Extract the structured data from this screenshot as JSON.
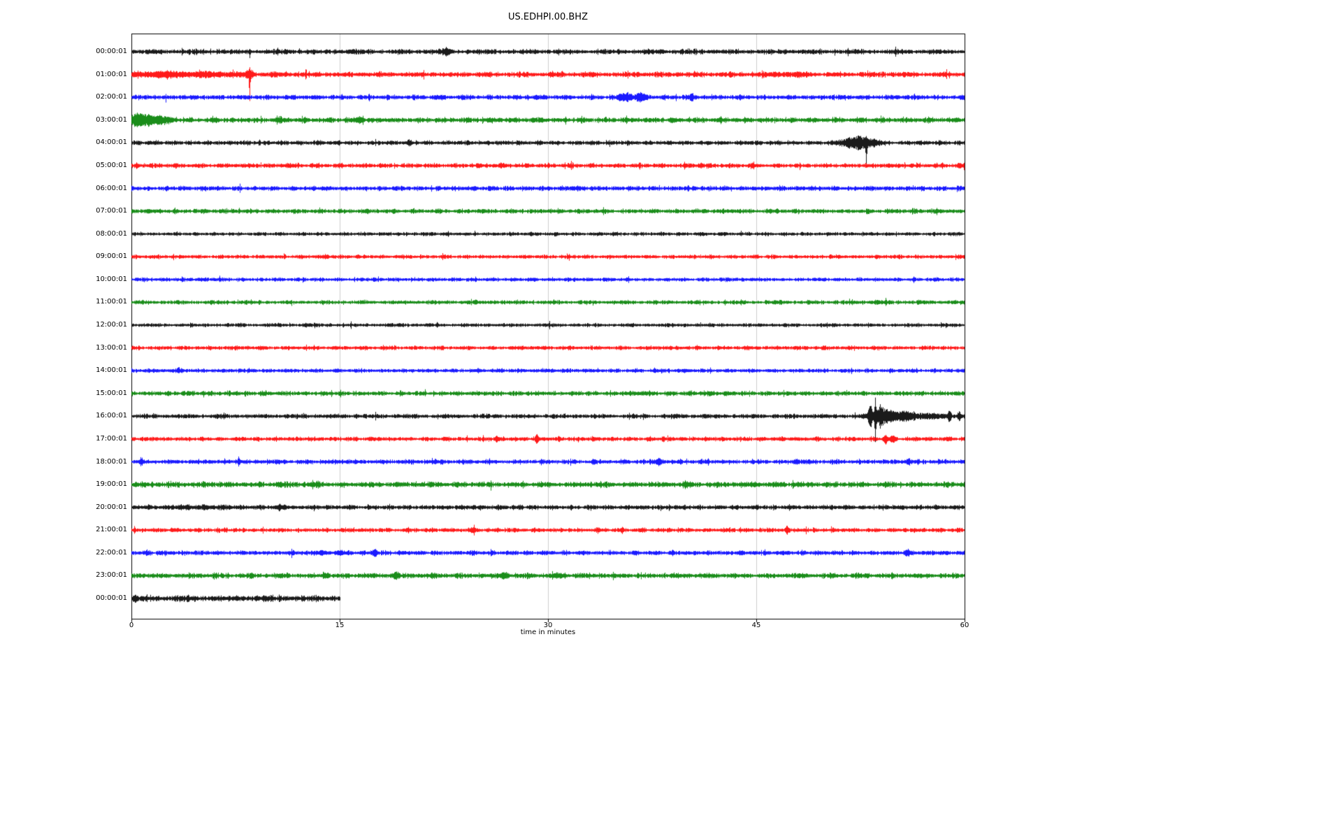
{
  "chart_data": {
    "type": "line",
    "subtype": "seismogram-dayplot",
    "title": "US.EDHPI.00.BHZ",
    "xlabel": "time in minutes",
    "ylabel": "",
    "xlim": [
      0,
      60
    ],
    "x_ticks": [
      "0",
      "15",
      "30",
      "45",
      "60"
    ],
    "minutes_per_row": 60,
    "grid": {
      "vertical": [
        15,
        30,
        45
      ],
      "color": "#cccccc",
      "on": true
    },
    "frame_color": "#000000",
    "background_color": "#ffffff",
    "colors_cycle": [
      "#000000",
      "#ff0000",
      "#0000ff",
      "#008000"
    ],
    "legend": "none",
    "rows": [
      {
        "label": "00:00:01",
        "color": "#000000",
        "duration": 60,
        "amp": 2.7,
        "events": [
          {
            "t": 8.5,
            "a": 7,
            "w": 0.05,
            "s": 0.6
          },
          {
            "t": 22.6,
            "a": 2,
            "w": 0.35
          }
        ]
      },
      {
        "label": "01:00:01",
        "color": "#ff0000",
        "duration": 60,
        "amp": 2.9,
        "events": [
          {
            "t": 2,
            "a": 2,
            "w": 2
          },
          {
            "t": 5.5,
            "a": 1.6,
            "w": 2.2
          },
          {
            "t": 8.5,
            "a": 46,
            "w": 0.04,
            "s": 0.85
          },
          {
            "t": 8.5,
            "a": 4,
            "w": 0.25
          },
          {
            "t": 47,
            "a": 1,
            "w": 1.5
          }
        ]
      },
      {
        "label": "02:00:01",
        "color": "#0000ff",
        "duration": 60,
        "amp": 2.6,
        "events": [
          {
            "t": 35.6,
            "a": 5,
            "w": 0.45
          },
          {
            "t": 36.7,
            "a": 4.5,
            "w": 0.35
          },
          {
            "t": 40.3,
            "a": 2.5,
            "w": 0.18
          }
        ]
      },
      {
        "label": "03:00:01",
        "color": "#008000",
        "duration": 60,
        "amp": 2.8,
        "events": [
          {
            "t": 0.3,
            "a": 6,
            "w": 0.6
          },
          {
            "t": 1.2,
            "a": 4,
            "w": 0.9
          },
          {
            "t": 2.3,
            "a": 2,
            "w": 0.8
          },
          {
            "t": 10.6,
            "a": 1.4,
            "w": 0.3
          },
          {
            "t": 16.4,
            "a": 3.5,
            "w": 0.3
          }
        ]
      },
      {
        "label": "04:00:01",
        "color": "#000000",
        "duration": 60,
        "amp": 2.4,
        "events": [
          {
            "t": 20,
            "a": 2,
            "w": 0.08
          },
          {
            "t": 51.6,
            "a": 4,
            "w": 0.7
          },
          {
            "t": 52.4,
            "a": 7,
            "w": 0.45
          },
          {
            "t": 52.9,
            "a": 28,
            "w": 0.06,
            "s": 0.8
          },
          {
            "t": 53.4,
            "a": 4,
            "w": 0.5
          }
        ]
      },
      {
        "label": "05:00:01",
        "color": "#ff0000",
        "duration": 60,
        "amp": 2.5,
        "events": [
          {
            "t": 11.2,
            "a": 2,
            "w": 0.15
          },
          {
            "t": 41,
            "a": 1.8,
            "w": 0.18
          },
          {
            "t": 44.7,
            "a": 1.7,
            "w": 0.15
          }
        ]
      },
      {
        "label": "06:00:01",
        "color": "#0000ff",
        "duration": 60,
        "amp": 2.5,
        "events": [
          {
            "t": 31.8,
            "a": 1.2,
            "w": 0.4
          }
        ]
      },
      {
        "label": "07:00:01",
        "color": "#008000",
        "duration": 60,
        "amp": 2.5,
        "events": []
      },
      {
        "label": "08:00:01",
        "color": "#000000",
        "duration": 60,
        "amp": 2.0,
        "events": []
      },
      {
        "label": "09:00:01",
        "color": "#ff0000",
        "duration": 60,
        "amp": 2.1,
        "events": [
          {
            "t": 14,
            "a": 1.2,
            "w": 0.3
          }
        ]
      },
      {
        "label": "10:00:01",
        "color": "#0000ff",
        "duration": 60,
        "amp": 2.1,
        "events": []
      },
      {
        "label": "11:00:01",
        "color": "#008000",
        "duration": 60,
        "amp": 2.2,
        "events": [
          {
            "t": 53.7,
            "a": 1.3,
            "w": 0.5
          }
        ]
      },
      {
        "label": "12:00:01",
        "color": "#000000",
        "duration": 60,
        "amp": 2.0,
        "events": [
          {
            "t": 12.6,
            "a": 1,
            "w": 0.3
          }
        ]
      },
      {
        "label": "13:00:01",
        "color": "#ff0000",
        "duration": 60,
        "amp": 2.2,
        "events": []
      },
      {
        "label": "14:00:01",
        "color": "#0000ff",
        "duration": 60,
        "amp": 2.2,
        "events": [
          {
            "t": 3.5,
            "a": 1.2,
            "w": 0.3
          }
        ]
      },
      {
        "label": "15:00:01",
        "color": "#008000",
        "duration": 60,
        "amp": 2.5,
        "events": [
          {
            "t": 7.5,
            "a": 1,
            "w": 0.3
          },
          {
            "t": 36.8,
            "a": 1,
            "w": 0.3
          }
        ]
      },
      {
        "label": "16:00:01",
        "color": "#000000",
        "duration": 60,
        "amp": 2.4,
        "events": [
          {
            "t": 53.2,
            "a": 12,
            "w": 0.18
          },
          {
            "t": 53.55,
            "a": 30,
            "w": 0.08,
            "s": 0.35
          },
          {
            "t": 53.9,
            "a": 12,
            "w": 0.25
          },
          {
            "t": 54.4,
            "a": 7,
            "w": 0.4
          },
          {
            "t": 55.3,
            "a": 4,
            "w": 0.8
          },
          {
            "t": 56.8,
            "a": 2.5,
            "w": 1.5
          },
          {
            "t": 58.9,
            "a": 8,
            "w": 0.1
          },
          {
            "t": 59.6,
            "a": 5,
            "w": 0.12
          }
        ]
      },
      {
        "label": "17:00:01",
        "color": "#ff0000",
        "duration": 60,
        "amp": 2.4,
        "events": [
          {
            "t": 26.3,
            "a": 4,
            "w": 0.1
          },
          {
            "t": 29.2,
            "a": 4,
            "w": 0.1
          },
          {
            "t": 38.3,
            "a": 2,
            "w": 0.12
          },
          {
            "t": 54.3,
            "a": 6,
            "w": 0.14,
            "s": 0.4
          },
          {
            "t": 54.8,
            "a": 3,
            "w": 0.2
          }
        ]
      },
      {
        "label": "18:00:01",
        "color": "#0000ff",
        "duration": 60,
        "amp": 2.5,
        "events": [
          {
            "t": 0.7,
            "a": 5,
            "w": 0.1
          },
          {
            "t": 7.7,
            "a": 5,
            "w": 0.09,
            "s": -0.3
          },
          {
            "t": 38,
            "a": 3,
            "w": 0.25
          },
          {
            "t": 47.9,
            "a": 2.5,
            "w": 0.22
          },
          {
            "t": 55.9,
            "a": 2,
            "w": 0.2
          }
        ]
      },
      {
        "label": "19:00:01",
        "color": "#008000",
        "duration": 60,
        "amp": 3.0,
        "events": [
          {
            "t": 10.7,
            "a": 2.5,
            "w": 0.22
          },
          {
            "t": 13.4,
            "a": 2.5,
            "w": 0.18
          },
          {
            "t": 40,
            "a": 2.5,
            "w": 0.28
          },
          {
            "t": 44.8,
            "a": 1.5,
            "w": 0.3
          }
        ]
      },
      {
        "label": "20:00:01",
        "color": "#000000",
        "duration": 60,
        "amp": 2.5,
        "events": [
          {
            "t": 5,
            "a": 0.8,
            "w": 3
          },
          {
            "t": 10.8,
            "a": 1.5,
            "w": 0.35
          }
        ]
      },
      {
        "label": "21:00:01",
        "color": "#ff0000",
        "duration": 60,
        "amp": 2.3,
        "events": [
          {
            "t": 24.7,
            "a": 3,
            "w": 0.1
          },
          {
            "t": 35.3,
            "a": 2.2,
            "w": 0.12
          },
          {
            "t": 47.2,
            "a": 3.5,
            "w": 0.12
          }
        ]
      },
      {
        "label": "22:00:01",
        "color": "#0000ff",
        "duration": 60,
        "amp": 2.5,
        "events": [
          {
            "t": 13.7,
            "a": 2.5,
            "w": 0.18
          },
          {
            "t": 15,
            "a": 2,
            "w": 0.25
          },
          {
            "t": 17.5,
            "a": 3.5,
            "w": 0.22
          },
          {
            "t": 43.8,
            "a": 1.8,
            "w": 0.2
          },
          {
            "t": 55.8,
            "a": 2,
            "w": 0.22
          }
        ]
      },
      {
        "label": "23:00:01",
        "color": "#008000",
        "duration": 60,
        "amp": 2.8,
        "events": [
          {
            "t": 14,
            "a": 2.5,
            "w": 0.22
          },
          {
            "t": 19,
            "a": 2.2,
            "w": 0.28
          },
          {
            "t": 26.8,
            "a": 3,
            "w": 0.3
          },
          {
            "t": 30.8,
            "a": 1.5,
            "w": 0.3
          }
        ]
      },
      {
        "label": "00:00:01",
        "color": "#000000",
        "duration": 15,
        "amp": 3.3,
        "events": []
      }
    ]
  }
}
